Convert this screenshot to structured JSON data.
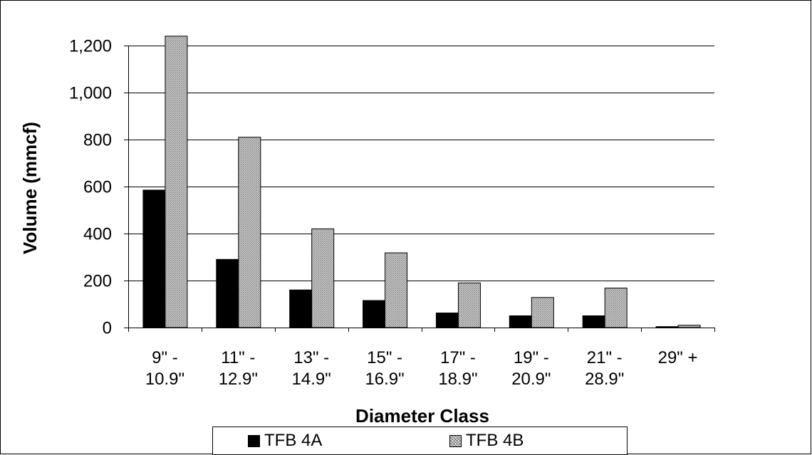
{
  "chart_data": {
    "type": "bar",
    "categories": [
      [
        "9\" -",
        "10.9\""
      ],
      [
        "11\" -",
        "12.9\""
      ],
      [
        "13\" -",
        "14.9\""
      ],
      [
        "15\" -",
        "16.9\""
      ],
      [
        "17\" -",
        "18.9\""
      ],
      [
        "19\" -",
        "20.9\""
      ],
      [
        "21\" -",
        "28.9\""
      ],
      [
        "29\" +"
      ]
    ],
    "series": [
      {
        "name": "TFB 4A",
        "values": [
          585,
          290,
          160,
          115,
          62,
          50,
          50,
          4
        ],
        "color": "#000000",
        "fill": "solid"
      },
      {
        "name": "TFB 4B",
        "values": [
          1240,
          810,
          420,
          318,
          190,
          128,
          168,
          10
        ],
        "color": "#cccccc",
        "fill": "hatched"
      }
    ],
    "xlabel": "Diameter Class",
    "ylabel": "Volume (mmcf)",
    "ylim": [
      0,
      1200
    ],
    "yticks": [
      0,
      200,
      400,
      600,
      800,
      1000,
      1200
    ],
    "ytick_labels": [
      "0",
      "200",
      "400",
      "600",
      "800",
      "1,000",
      "1,200"
    ],
    "grid": true,
    "legend_position": "bottom"
  }
}
